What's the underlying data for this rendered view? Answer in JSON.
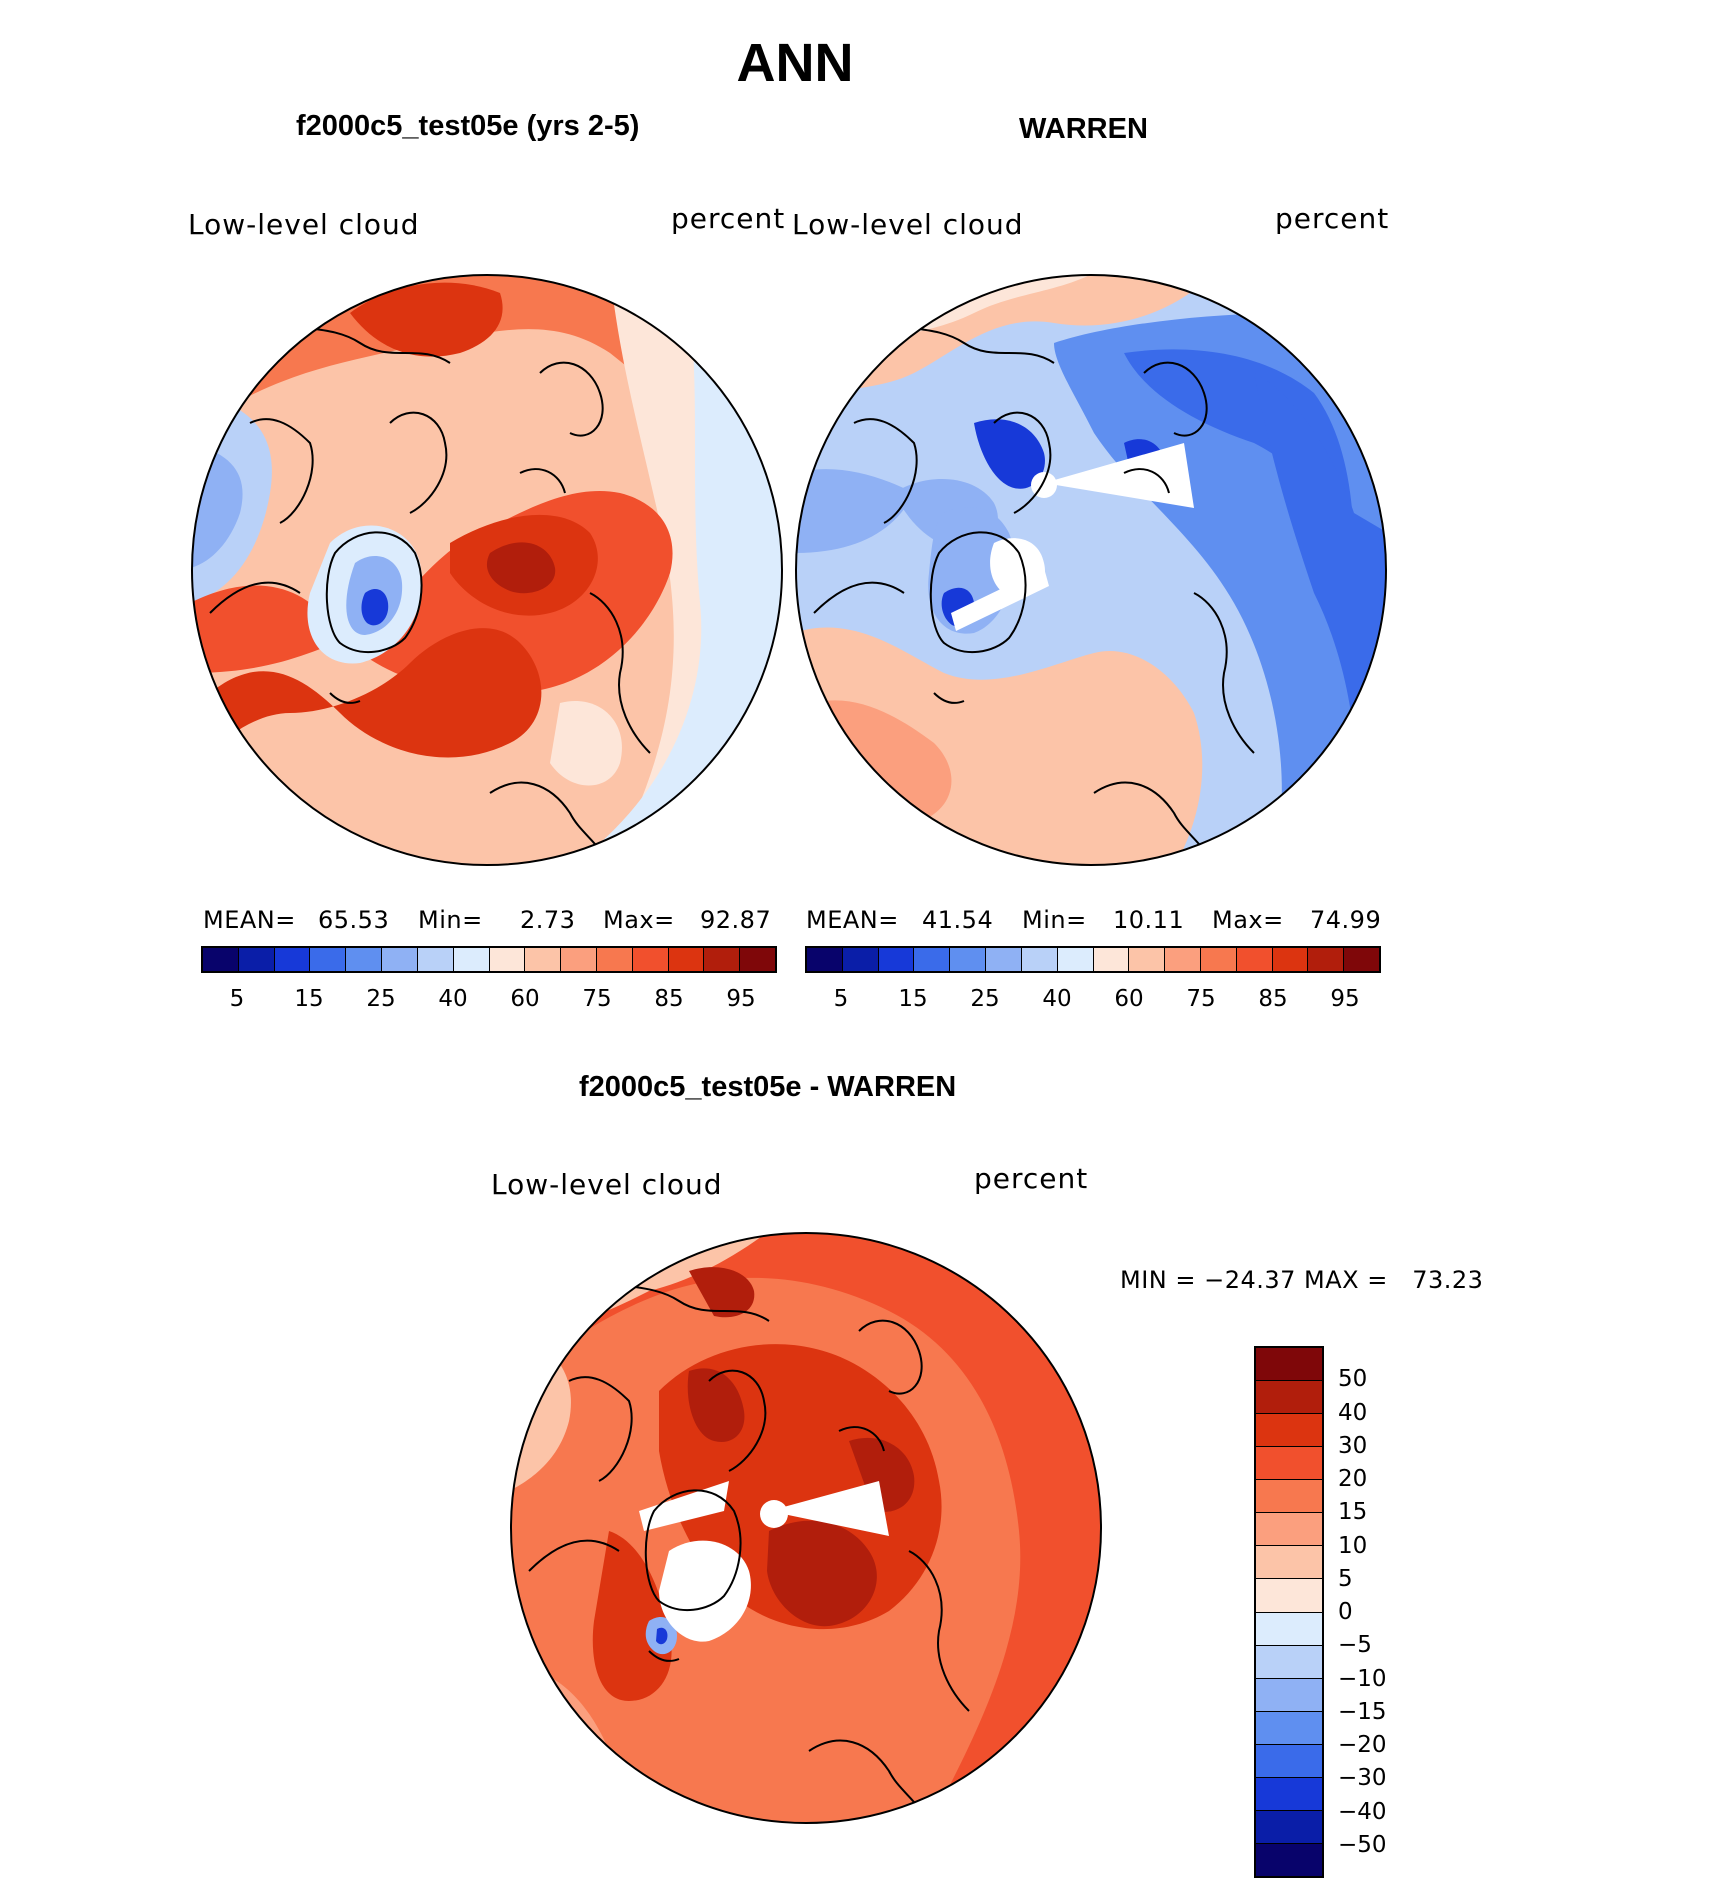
{
  "title": "ANN",
  "panel_left": {
    "subtitle": "f2000c5_test05e (yrs 2-5)",
    "variable": "Low-level cloud",
    "units": "percent",
    "stats": {
      "mean_label": "MEAN=",
      "mean": "65.53",
      "min_label": "Min=",
      "min": "2.73",
      "max_label": "Max=",
      "max": "92.87"
    }
  },
  "panel_right": {
    "subtitle": "WARREN",
    "variable": "Low-level cloud",
    "units": "percent",
    "stats": {
      "mean_label": "MEAN=",
      "mean": "41.54",
      "min_label": "Min=",
      "min": "10.11",
      "max_label": "Max=",
      "max": "74.99"
    }
  },
  "panel_diff": {
    "subtitle": "f2000c5_test05e - WARREN",
    "variable": "Low-level cloud",
    "units": "percent",
    "minmax": "MIN = −24.37 MAX =   73.23"
  },
  "colorbar_abs": {
    "colors": [
      "#08036b",
      "#0a1ea8",
      "#1739d8",
      "#3a6bea",
      "#5f8ff0",
      "#8fb1f4",
      "#b9d1f8",
      "#dcecfd",
      "#fde6d9",
      "#fcc4a8",
      "#fb9f7e",
      "#f7784f",
      "#f1502d",
      "#dc3410",
      "#b11e0c",
      "#7f0709"
    ],
    "labels": [
      "5",
      "15",
      "25",
      "40",
      "60",
      "75",
      "85",
      "95"
    ]
  },
  "colorbar_diff": {
    "colors": [
      "#7f0709",
      "#b11e0c",
      "#dc3410",
      "#f1502d",
      "#f7784f",
      "#fb9f7e",
      "#fcc4a8",
      "#fde6d9",
      "#dcecfd",
      "#b9d1f8",
      "#8fb1f4",
      "#5f8ff0",
      "#3a6bea",
      "#1739d8",
      "#0a1ea8",
      "#08036b"
    ],
    "labels": [
      "50",
      "40",
      "30",
      "20",
      "15",
      "10",
      "5",
      "0",
      "−5",
      "−10",
      "−15",
      "−20",
      "−30",
      "−40",
      "−50"
    ]
  }
}
